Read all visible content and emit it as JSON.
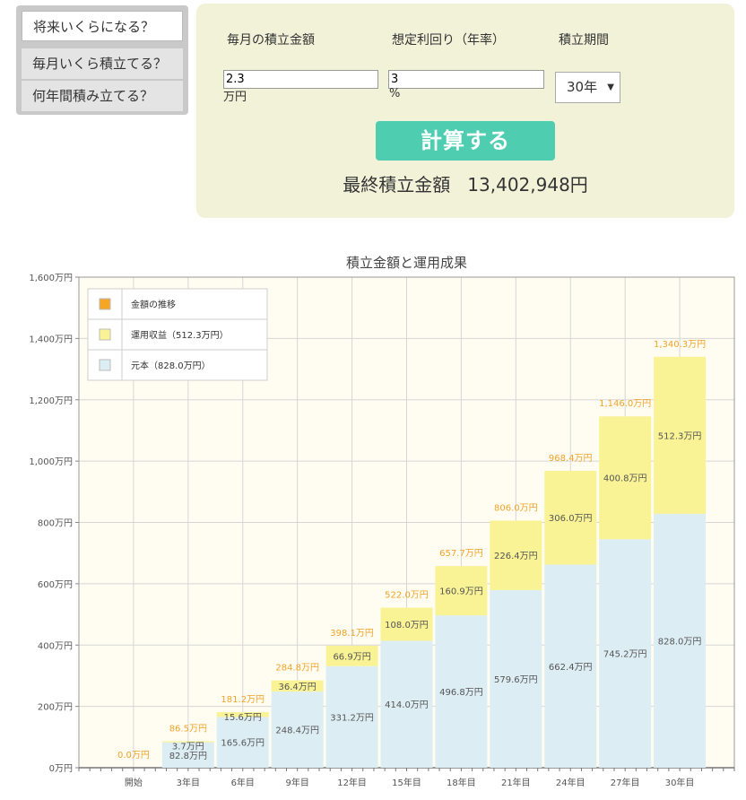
{
  "tabs": [
    {
      "label": "将来いくらになる？"
    },
    {
      "label": "毎月いくら積立てる？"
    },
    {
      "label": "何年間積み立てる？"
    }
  ],
  "form": {
    "monthly_label": "毎月の積立金額",
    "rate_label": "想定利回り（年率）",
    "period_label": "積立期間",
    "monthly_value": "2.3",
    "monthly_unit": "万円",
    "rate_value": "3",
    "rate_unit": "%",
    "period_value": "30年",
    "calc_button": "計算する",
    "result_label": "最終積立金額",
    "result_value": "13,402,948円"
  },
  "colors": {
    "principal": "#ddedf4",
    "gain": "#f9f396",
    "total_label": "#f2a32a",
    "trend_legend": "#f5a623"
  },
  "chart_data": {
    "type": "bar",
    "title": "積立金額と運用成果",
    "stacked": true,
    "categories": [
      "開始",
      "3年目",
      "6年目",
      "9年目",
      "12年目",
      "15年目",
      "18年目",
      "21年目",
      "24年目",
      "27年目",
      "30年目"
    ],
    "series": [
      {
        "name": "元本（828.0万円）",
        "values": [
          0,
          82.8,
          165.6,
          248.4,
          331.2,
          414.0,
          496.8,
          579.6,
          662.4,
          745.2,
          828.0
        ]
      },
      {
        "name": "運用収益（512.3万円）",
        "values": [
          0,
          3.7,
          15.6,
          36.4,
          66.9,
          108.0,
          160.9,
          226.4,
          306.0,
          400.8,
          512.3
        ]
      }
    ],
    "totals": [
      0.0,
      86.5,
      181.2,
      284.8,
      398.1,
      522.0,
      657.7,
      806.0,
      968.4,
      1146.0,
      1340.3
    ],
    "legend": [
      "金額の推移",
      "運用収益（512.3万円）",
      "元本（828.0万円）"
    ],
    "legend_position": "top-left",
    "principal_labels": [
      "",
      "82.8万円",
      "165.6万円",
      "248.4万円",
      "331.2万円",
      "414.0万円",
      "496.8万円",
      "579.6万円",
      "662.4万円",
      "745.2万円",
      "828.0万円"
    ],
    "gain_labels": [
      "",
      "3.7万円",
      "15.6万円",
      "36.4万円",
      "66.9万円",
      "108.0万円",
      "160.9万円",
      "226.4万円",
      "306.0万円",
      "400.8万円",
      "512.3万円"
    ],
    "total_labels": [
      "0.0万円",
      "86.5万円",
      "181.2万円",
      "284.8万円",
      "398.1万円",
      "522.0万円",
      "657.7万円",
      "806.0万円",
      "968.4万円",
      "1,146.0万円",
      "1,340.3万円"
    ],
    "ylim": [
      0,
      1600
    ],
    "yticks": [
      0,
      200,
      400,
      600,
      800,
      1000,
      1200,
      1400,
      1600
    ],
    "ytick_labels": [
      "0万円",
      "200万円",
      "400万円",
      "600万円",
      "800万円",
      "1,000万円",
      "1,200万円",
      "1,400万円",
      "1,600万円"
    ],
    "grid": true
  }
}
